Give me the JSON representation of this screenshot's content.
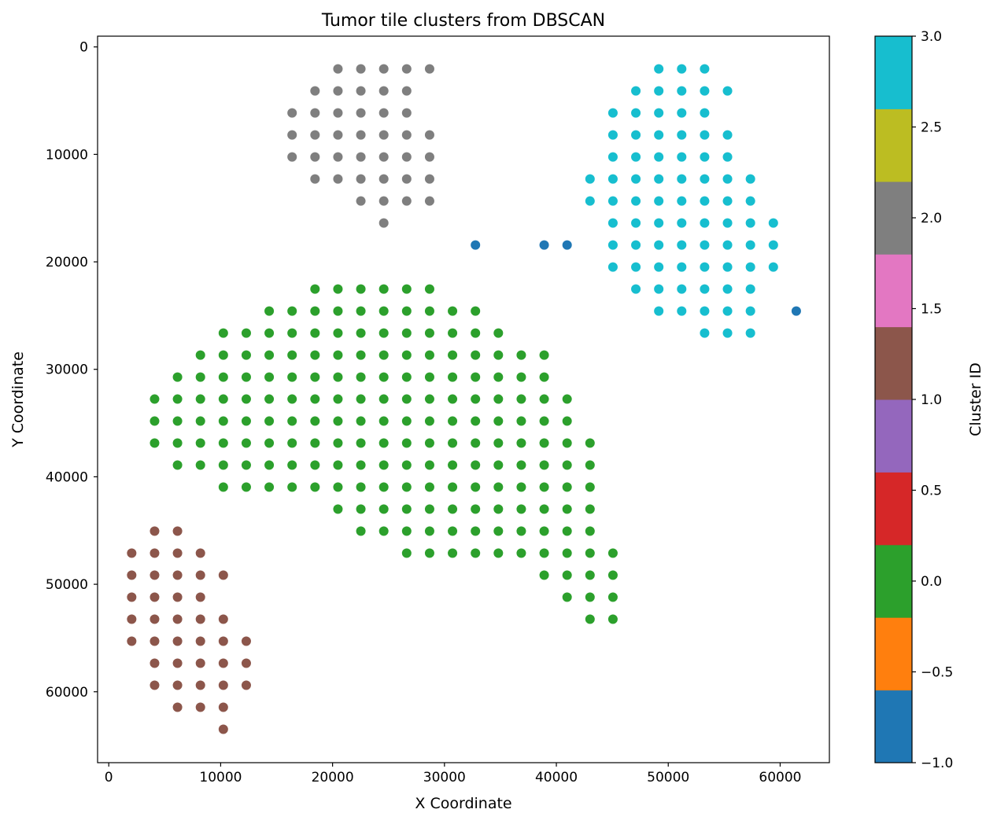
{
  "chart_data": {
    "type": "scatter",
    "title": "Tumor tile clusters from DBSCAN",
    "xlabel": "X Coordinate",
    "ylabel": "Y Coordinate",
    "xlim": [
      -1000,
      64400
    ],
    "ylim": [
      66600,
      -1000
    ],
    "y_inverted": true,
    "xticks": [
      0,
      10000,
      20000,
      30000,
      40000,
      50000,
      60000
    ],
    "yticks": [
      0,
      10000,
      20000,
      30000,
      40000,
      50000,
      60000
    ],
    "grid": false,
    "grid_step": 2048,
    "colorbar": {
      "label": "Cluster ID",
      "range": [
        -1.0,
        3.0
      ],
      "ticks": [
        "3.0",
        "2.5",
        "2.0",
        "1.5",
        "1.0",
        "0.5",
        "0.0",
        "−0.5",
        "−1.0"
      ],
      "tick_values": [
        3.0,
        2.5,
        2.0,
        1.5,
        1.0,
        0.5,
        0.0,
        -0.5,
        -1.0
      ],
      "colors_bottom_to_top": [
        "#1f77b4",
        "#ff7f0e",
        "#2ca02c",
        "#d62728",
        "#9467bd",
        "#8c564b",
        "#e377c2",
        "#7f7f7f",
        "#bcbd22",
        "#17becf"
      ]
    },
    "cluster_colors": {
      "-1": "#1f77b4",
      "0": "#2ca02c",
      "1": "#8c564b",
      "2": "#7f7f7f",
      "3": "#17becf"
    },
    "clusters": [
      {
        "id": -1,
        "points": [
          [
            32768,
            18432
          ],
          [
            38912,
            18432
          ],
          [
            40960,
            18432
          ],
          [
            61440,
            24576
          ]
        ]
      },
      {
        "id": 2,
        "grid_rows": [
          {
            "y": 2048,
            "x": [
              20480,
              22528,
              24576,
              26624,
              28672
            ]
          },
          {
            "y": 4096,
            "x": [
              18432,
              20480,
              22528,
              24576,
              26624
            ]
          },
          {
            "y": 6144,
            "x": [
              16384,
              18432,
              20480,
              22528,
              24576,
              26624
            ]
          },
          {
            "y": 8192,
            "x": [
              16384,
              18432,
              20480,
              22528,
              24576,
              26624,
              28672
            ]
          },
          {
            "y": 10240,
            "x": [
              16384,
              18432,
              20480,
              22528,
              24576,
              26624,
              28672
            ]
          },
          {
            "y": 12288,
            "x": [
              18432,
              20480,
              22528,
              24576,
              26624,
              28672
            ]
          },
          {
            "y": 14336,
            "x": [
              22528,
              24576,
              26624,
              28672
            ]
          },
          {
            "y": 16384,
            "x": [
              24576
            ]
          }
        ]
      },
      {
        "id": 3,
        "grid_rows": [
          {
            "y": 2048,
            "x": [
              49152,
              51200,
              53248
            ]
          },
          {
            "y": 4096,
            "x": [
              47104,
              49152,
              51200,
              53248,
              55296
            ]
          },
          {
            "y": 6144,
            "x": [
              45056,
              47104,
              49152,
              51200,
              53248
            ]
          },
          {
            "y": 8192,
            "x": [
              45056,
              47104,
              49152,
              51200,
              53248,
              55296
            ]
          },
          {
            "y": 10240,
            "x": [
              45056,
              47104,
              49152,
              51200,
              53248,
              55296
            ]
          },
          {
            "y": 12288,
            "x": [
              43008,
              45056,
              47104,
              49152,
              51200,
              53248,
              55296,
              57344
            ]
          },
          {
            "y": 14336,
            "x": [
              43008,
              45056,
              47104,
              49152,
              51200,
              53248,
              55296,
              57344
            ]
          },
          {
            "y": 16384,
            "x": [
              45056,
              47104,
              49152,
              51200,
              53248,
              55296,
              57344,
              59392
            ]
          },
          {
            "y": 18432,
            "x": [
              45056,
              47104,
              49152,
              51200,
              53248,
              55296,
              57344,
              59392
            ]
          },
          {
            "y": 20480,
            "x": [
              45056,
              47104,
              49152,
              51200,
              53248,
              55296,
              57344,
              59392
            ]
          },
          {
            "y": 22528,
            "x": [
              47104,
              49152,
              51200,
              53248,
              55296,
              57344
            ]
          },
          {
            "y": 24576,
            "x": [
              49152,
              51200,
              53248,
              55296,
              57344
            ]
          },
          {
            "y": 26624,
            "x": [
              53248,
              55296,
              57344
            ]
          }
        ]
      },
      {
        "id": 0,
        "grid_rows": [
          {
            "y": 22528,
            "x": [
              18432,
              20480,
              22528,
              24576,
              26624,
              28672
            ]
          },
          {
            "y": 24576,
            "x": [
              14336,
              16384,
              18432,
              20480,
              22528,
              24576,
              26624,
              28672,
              30720,
              32768
            ]
          },
          {
            "y": 26624,
            "x": [
              10240,
              12288,
              14336,
              16384,
              18432,
              20480,
              22528,
              24576,
              26624,
              28672,
              30720,
              32768,
              34816
            ]
          },
          {
            "y": 28672,
            "x": [
              8192,
              10240,
              12288,
              14336,
              16384,
              18432,
              20480,
              22528,
              24576,
              26624,
              28672,
              30720,
              32768,
              34816,
              36864,
              38912
            ]
          },
          {
            "y": 30720,
            "x": [
              6144,
              8192,
              10240,
              12288,
              14336,
              16384,
              18432,
              20480,
              22528,
              24576,
              26624,
              28672,
              30720,
              32768,
              34816,
              36864,
              38912
            ]
          },
          {
            "y": 32768,
            "x": [
              4096,
              6144,
              8192,
              10240,
              12288,
              14336,
              16384,
              18432,
              20480,
              22528,
              24576,
              26624,
              28672,
              30720,
              32768,
              34816,
              36864,
              38912,
              40960
            ]
          },
          {
            "y": 34816,
            "x": [
              4096,
              6144,
              8192,
              10240,
              12288,
              14336,
              16384,
              18432,
              20480,
              22528,
              24576,
              26624,
              28672,
              30720,
              32768,
              34816,
              36864,
              38912,
              40960
            ]
          },
          {
            "y": 36864,
            "x": [
              4096,
              6144,
              8192,
              10240,
              12288,
              14336,
              16384,
              18432,
              20480,
              22528,
              24576,
              26624,
              28672,
              30720,
              32768,
              34816,
              36864,
              38912,
              40960,
              43008
            ]
          },
          {
            "y": 38912,
            "x": [
              6144,
              8192,
              10240,
              12288,
              14336,
              16384,
              18432,
              20480,
              22528,
              24576,
              26624,
              28672,
              30720,
              32768,
              34816,
              36864,
              38912,
              40960,
              43008
            ]
          },
          {
            "y": 40960,
            "x": [
              10240,
              12288,
              14336,
              16384,
              18432,
              20480,
              22528,
              24576,
              26624,
              28672,
              30720,
              32768,
              34816,
              36864,
              38912,
              40960,
              43008
            ]
          },
          {
            "y": 43008,
            "x": [
              20480,
              22528,
              24576,
              26624,
              28672,
              30720,
              32768,
              34816,
              36864,
              38912,
              40960,
              43008
            ]
          },
          {
            "y": 45056,
            "x": [
              22528,
              24576,
              26624,
              28672,
              30720,
              32768,
              34816,
              36864,
              38912,
              40960,
              43008
            ]
          },
          {
            "y": 47104,
            "x": [
              26624,
              28672,
              30720,
              32768,
              34816,
              36864,
              38912,
              40960,
              43008,
              45056
            ]
          },
          {
            "y": 49152,
            "x": [
              38912,
              40960,
              43008,
              45056
            ]
          },
          {
            "y": 51200,
            "x": [
              40960,
              43008,
              45056
            ]
          },
          {
            "y": 53248,
            "x": [
              43008,
              45056
            ]
          }
        ]
      },
      {
        "id": 1,
        "grid_rows": [
          {
            "y": 45056,
            "x": [
              4096,
              6144
            ]
          },
          {
            "y": 47104,
            "x": [
              2048,
              4096,
              6144,
              8192
            ]
          },
          {
            "y": 49152,
            "x": [
              2048,
              4096,
              6144,
              8192,
              10240
            ]
          },
          {
            "y": 51200,
            "x": [
              2048,
              4096,
              6144,
              8192
            ]
          },
          {
            "y": 53248,
            "x": [
              2048,
              4096,
              6144,
              8192,
              10240
            ]
          },
          {
            "y": 55296,
            "x": [
              2048,
              4096,
              6144,
              8192,
              10240,
              12288
            ]
          },
          {
            "y": 57344,
            "x": [
              4096,
              6144,
              8192,
              10240,
              12288
            ]
          },
          {
            "y": 59392,
            "x": [
              4096,
              6144,
              8192,
              10240,
              12288
            ]
          },
          {
            "y": 61440,
            "x": [
              6144,
              8192,
              10240
            ]
          },
          {
            "y": 63488,
            "x": [
              10240
            ]
          }
        ]
      }
    ]
  }
}
